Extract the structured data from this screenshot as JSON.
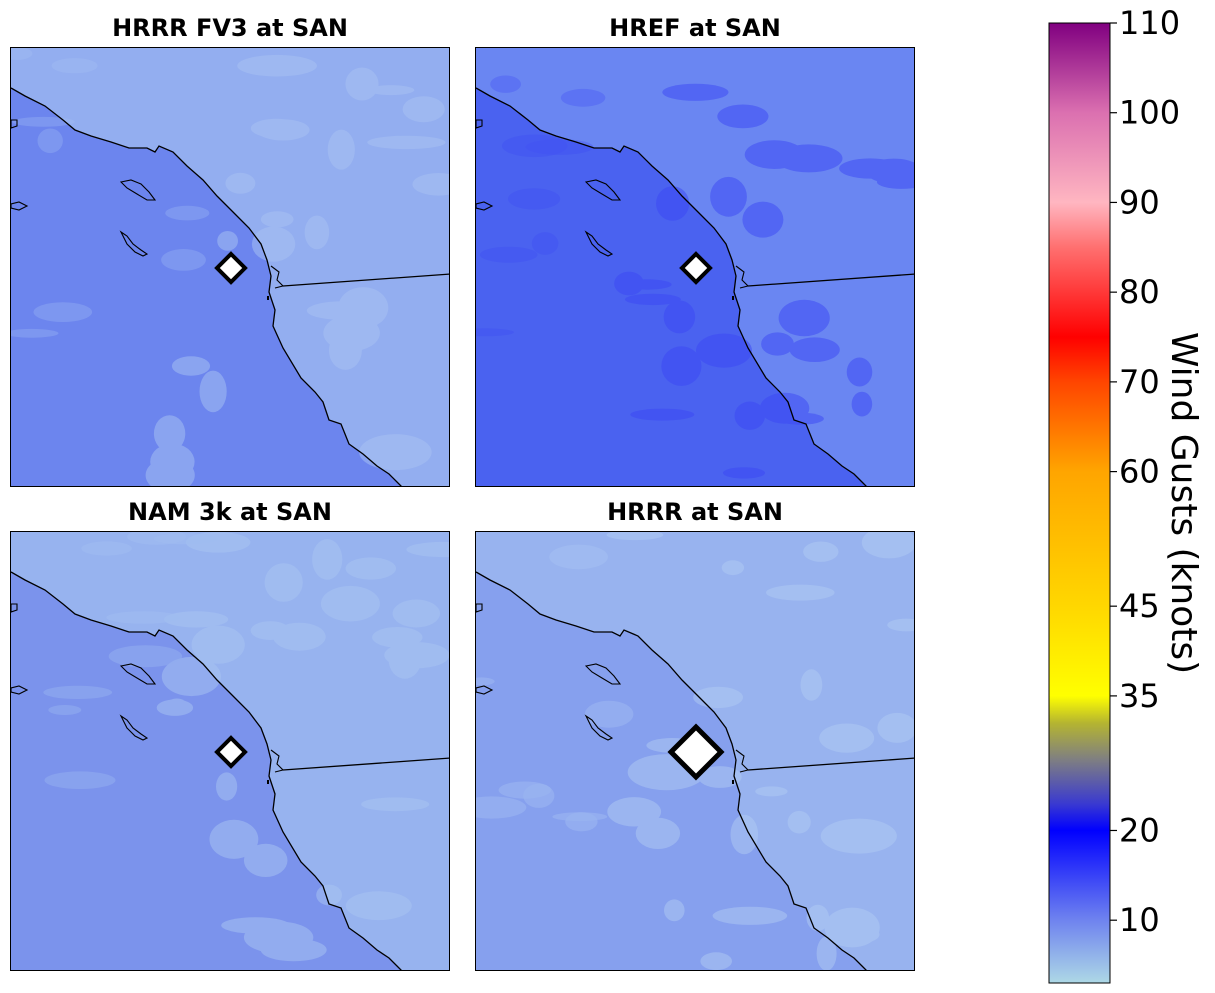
{
  "panels": [
    {
      "title": "HRRR FV3 at SAN",
      "ocean_color": "#6c85ee",
      "land_color": "#93aef0",
      "accent_color": "#a8c2f3",
      "marker_size": "small"
    },
    {
      "title": "HREF at SAN",
      "ocean_color": "#4a62f0",
      "land_color": "#6a86f2",
      "accent_color": "#3c48f5",
      "marker_size": "small"
    },
    {
      "title": "NAM 3k at SAN",
      "ocean_color": "#7b93ec",
      "land_color": "#97b3ef",
      "accent_color": "#a9c5f2",
      "marker_size": "small"
    },
    {
      "title": "HRRR at SAN",
      "ocean_color": "#86a0ee",
      "land_color": "#98b3ef",
      "accent_color": "#b0cbf3",
      "marker_size": "large"
    }
  ],
  "colorbar": {
    "label": "Wind Gusts (knots)",
    "min": 3,
    "max": 110,
    "ticks": [
      "10",
      "20",
      "35",
      "45",
      "60",
      "70",
      "80",
      "90",
      "100",
      "110"
    ],
    "stops": [
      {
        "value": 3,
        "color": "#add8e6"
      },
      {
        "value": 10,
        "color": "#6f83ef"
      },
      {
        "value": 20,
        "color": "#0000ff"
      },
      {
        "value": 23,
        "color": "#3a3ad0"
      },
      {
        "value": 28,
        "color": "#808080"
      },
      {
        "value": 32,
        "color": "#b5b530"
      },
      {
        "value": 35,
        "color": "#ffff00"
      },
      {
        "value": 45,
        "color": "#ffd700"
      },
      {
        "value": 60,
        "color": "#ffa500"
      },
      {
        "value": 70,
        "color": "#ff4500"
      },
      {
        "value": 75,
        "color": "#ff0000"
      },
      {
        "value": 85,
        "color": "#ff7070"
      },
      {
        "value": 90,
        "color": "#ffb6c1"
      },
      {
        "value": 100,
        "color": "#db70b0"
      },
      {
        "value": 110,
        "color": "#800080"
      }
    ]
  }
}
